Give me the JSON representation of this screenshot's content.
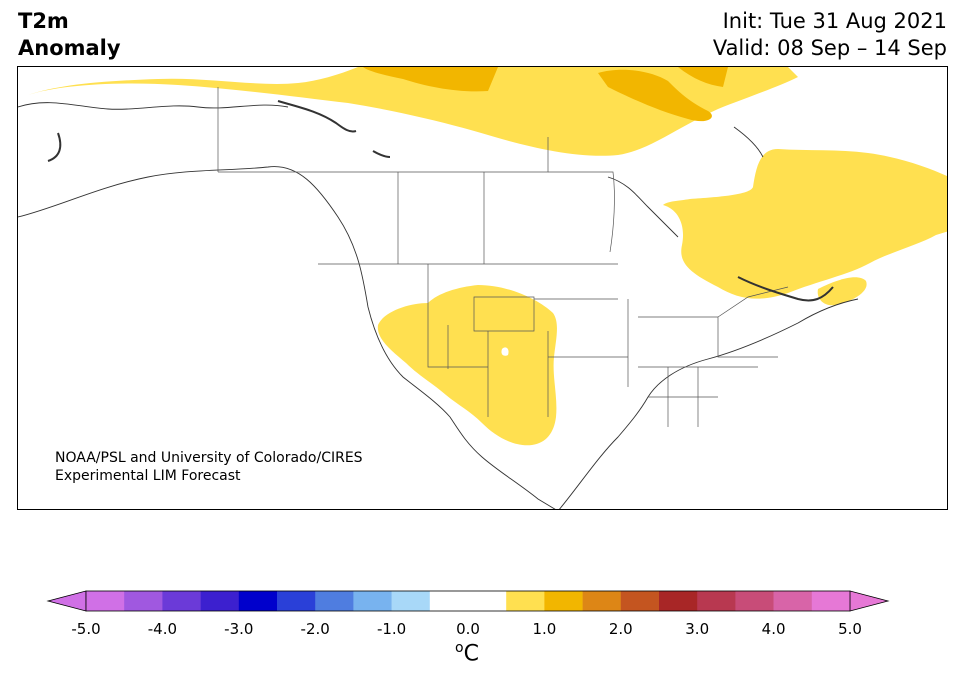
{
  "title": {
    "line1": "T2m",
    "line2": "Anomaly"
  },
  "run": {
    "init": "Init: Tue 31 Aug 2021",
    "valid": "Valid: 08 Sep – 14 Sep"
  },
  "credit": {
    "line1": "NOAA/PSL and University of Colorado/CIRES",
    "line2": "Experimental LIM Forecast"
  },
  "colorbar": {
    "unit_sup": "o",
    "unit_base": "C",
    "tick_labels": [
      "-5.0",
      "-4.0",
      "-3.0",
      "-2.0",
      "-1.0",
      "0.0",
      "1.0",
      "2.0",
      "3.0",
      "4.0",
      "5.0"
    ],
    "tick_values": [
      -5,
      -4,
      -3,
      -2,
      -1,
      0,
      1,
      2,
      3,
      4,
      5
    ],
    "under_color": "#d070e6",
    "over_color": "#e678d6",
    "colors": [
      "#d070e6",
      "#a058e0",
      "#6b3ad8",
      "#3c20cf",
      "#0000cc",
      "#2a40d8",
      "#4f7de0",
      "#78b3ef",
      "#a8d8f8",
      "#ffffff",
      "#ffffff",
      "#ffe050",
      "#f2b600",
      "#dd8616",
      "#c45520",
      "#a82626",
      "#b83850",
      "#c84c78",
      "#d864a8",
      "#e678d6"
    ]
  },
  "map": {
    "region": "North America",
    "anomaly_color_1C": "#ffe050",
    "anomaly_color_1_5C": "#f2b600"
  }
}
